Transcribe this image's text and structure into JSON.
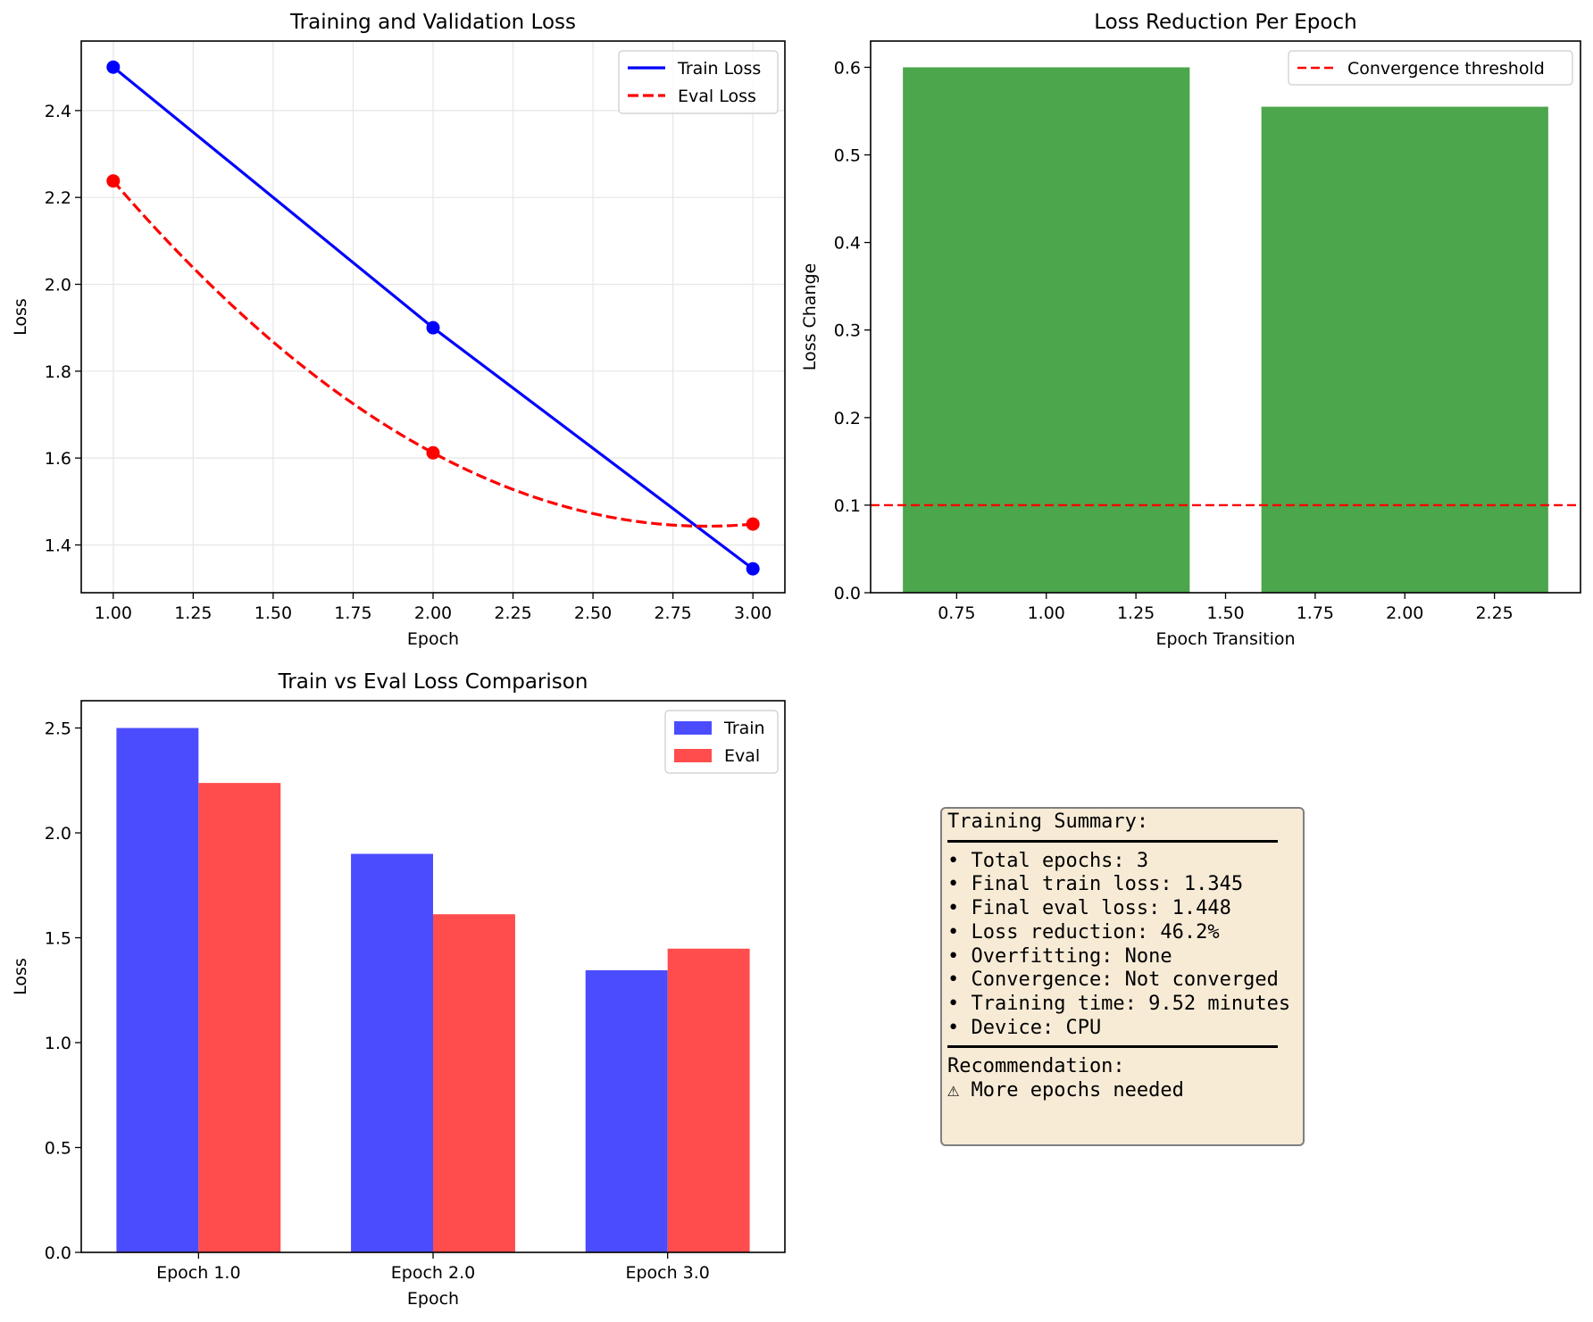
{
  "chart_data": [
    {
      "type": "line",
      "title": "Training and Validation Loss",
      "xlabel": "Epoch",
      "ylabel": "Loss",
      "xlim": [
        0.9,
        3.1
      ],
      "ylim": [
        1.29,
        2.56
      ],
      "xticks": [
        1.0,
        1.25,
        1.5,
        1.75,
        2.0,
        2.25,
        2.5,
        2.75,
        3.0
      ],
      "xtick_labels": [
        "1.00",
        "1.25",
        "1.50",
        "1.75",
        "2.00",
        "2.25",
        "2.50",
        "2.75",
        "3.00"
      ],
      "yticks": [
        1.4,
        1.6,
        1.8,
        2.0,
        2.2,
        2.4
      ],
      "ytick_labels": [
        "1.4",
        "1.6",
        "1.8",
        "2.0",
        "2.2",
        "2.4"
      ],
      "grid": true,
      "legend_position": "top-right",
      "series": [
        {
          "name": "Train Loss",
          "x": [
            1,
            2,
            3
          ],
          "y": [
            2.5,
            1.9,
            1.345
          ],
          "color": "#0000ff",
          "style": "solid",
          "smooth": false
        },
        {
          "name": "Eval Loss",
          "x": [
            1,
            2,
            3
          ],
          "y": [
            2.238,
            1.612,
            1.448
          ],
          "color": "#ff0000",
          "style": "dashed",
          "smooth": true
        }
      ]
    },
    {
      "type": "bar",
      "title": "Loss Reduction Per Epoch",
      "xlabel": "Epoch Transition",
      "ylabel": "Loss Change",
      "xlim": [
        0.51,
        2.49
      ],
      "ylim": [
        0,
        0.63
      ],
      "xticks": [
        0.75,
        1.0,
        1.25,
        1.5,
        1.75,
        2.0,
        2.25
      ],
      "xtick_labels": [
        "0.75",
        "1.00",
        "1.25",
        "1.50",
        "1.75",
        "2.00",
        "2.25"
      ],
      "yticks": [
        0.0,
        0.1,
        0.2,
        0.3,
        0.4,
        0.5,
        0.6
      ],
      "ytick_labels": [
        "0.0",
        "0.1",
        "0.2",
        "0.3",
        "0.4",
        "0.5",
        "0.6"
      ],
      "grid": false,
      "legend_position": "top-right",
      "bars": [
        {
          "x": 1,
          "value": 0.6
        },
        {
          "x": 2,
          "value": 0.555
        }
      ],
      "bar_width": 0.8,
      "bar_color": "#4ca64c",
      "threshold": {
        "name": "Convergence threshold",
        "value": 0.1,
        "color": "#ff0000",
        "style": "dashed"
      }
    },
    {
      "type": "bar",
      "title": "Train vs Eval Loss Comparison",
      "xlabel": "Epoch",
      "ylabel": "Loss",
      "xlim": [
        -0.5,
        2.5
      ],
      "ylim": [
        0,
        2.63
      ],
      "categories": [
        "Epoch 1.0",
        "Epoch 2.0",
        "Epoch 3.0"
      ],
      "yticks": [
        0.0,
        0.5,
        1.0,
        1.5,
        2.0,
        2.5
      ],
      "ytick_labels": [
        "0.0",
        "0.5",
        "1.0",
        "1.5",
        "2.0",
        "2.5"
      ],
      "grid": false,
      "legend_position": "top-right",
      "bar_width": 0.35,
      "series": [
        {
          "name": "Train",
          "values": [
            2.5,
            1.9,
            1.345
          ],
          "color": "#4c4cff"
        },
        {
          "name": "Eval",
          "values": [
            2.238,
            1.612,
            1.448
          ],
          "color": "#ff4c4c"
        }
      ]
    }
  ],
  "summary": {
    "header": "Training Summary:",
    "lines": [
      "• Total epochs: 3",
      "• Final train loss: 1.345",
      "• Final eval loss: 1.448",
      "• Loss reduction: 46.2%",
      "• Overfitting: None",
      "• Convergence: Not converged",
      "• Training time: 9.52 minutes",
      "• Device: CPU"
    ],
    "recommendation_label": "Recommendation:",
    "recommendation": "⚠ More epochs needed"
  }
}
